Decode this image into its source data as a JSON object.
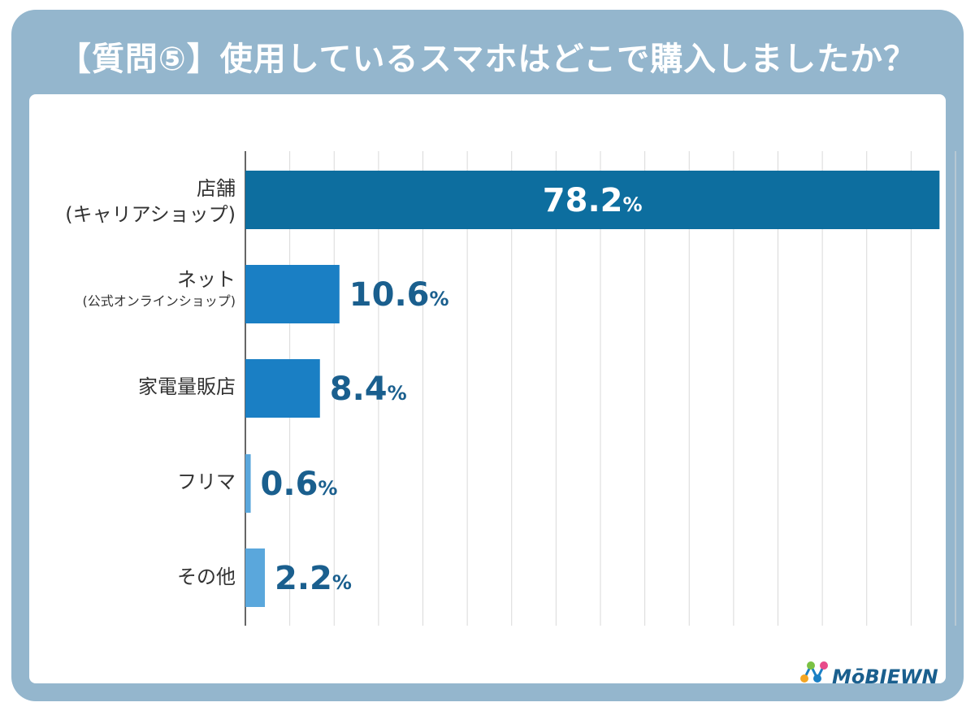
{
  "title": "【質問⑤】使用しているスマホはどこで購入しましたか？",
  "logo_text": "MōBIEWN",
  "colors": {
    "frame": "#94b6cd",
    "bar_primary": "#0d6e9f",
    "bar_secondary": "#1a7fc4",
    "bar_light": "#5aa7dc",
    "value_text": "#1a5f8e",
    "value_text_inside": "#ffffff",
    "grid": "#d9d9d9",
    "axis": "#333333"
  },
  "labels": [
    {
      "main": "店舗",
      "sub": "(キャリアショップ)",
      "sub_small": false
    },
    {
      "main": "ネット",
      "sub": "(公式オンラインショップ)",
      "sub_small": true
    },
    {
      "main": "家電量販店",
      "sub": "",
      "sub_small": false
    },
    {
      "main": "フリマ",
      "sub": "",
      "sub_small": false
    },
    {
      "main": "その他",
      "sub": "",
      "sub_small": false
    }
  ],
  "chart_data": {
    "type": "bar",
    "orientation": "horizontal",
    "categories": [
      "店舗(キャリアショップ)",
      "ネット(公式オンラインショップ)",
      "家電量販店",
      "フリマ",
      "その他"
    ],
    "values": [
      78.2,
      10.6,
      8.4,
      0.6,
      2.2
    ],
    "value_labels": [
      "78.2",
      "10.6",
      "8.4",
      "0.6",
      "2.2"
    ],
    "unit": "%",
    "xlim": [
      0,
      80
    ],
    "grid": true,
    "bar_colors": [
      "#0d6e9f",
      "#1a7fc4",
      "#1a7fc4",
      "#5aa7dc",
      "#5aa7dc"
    ]
  }
}
